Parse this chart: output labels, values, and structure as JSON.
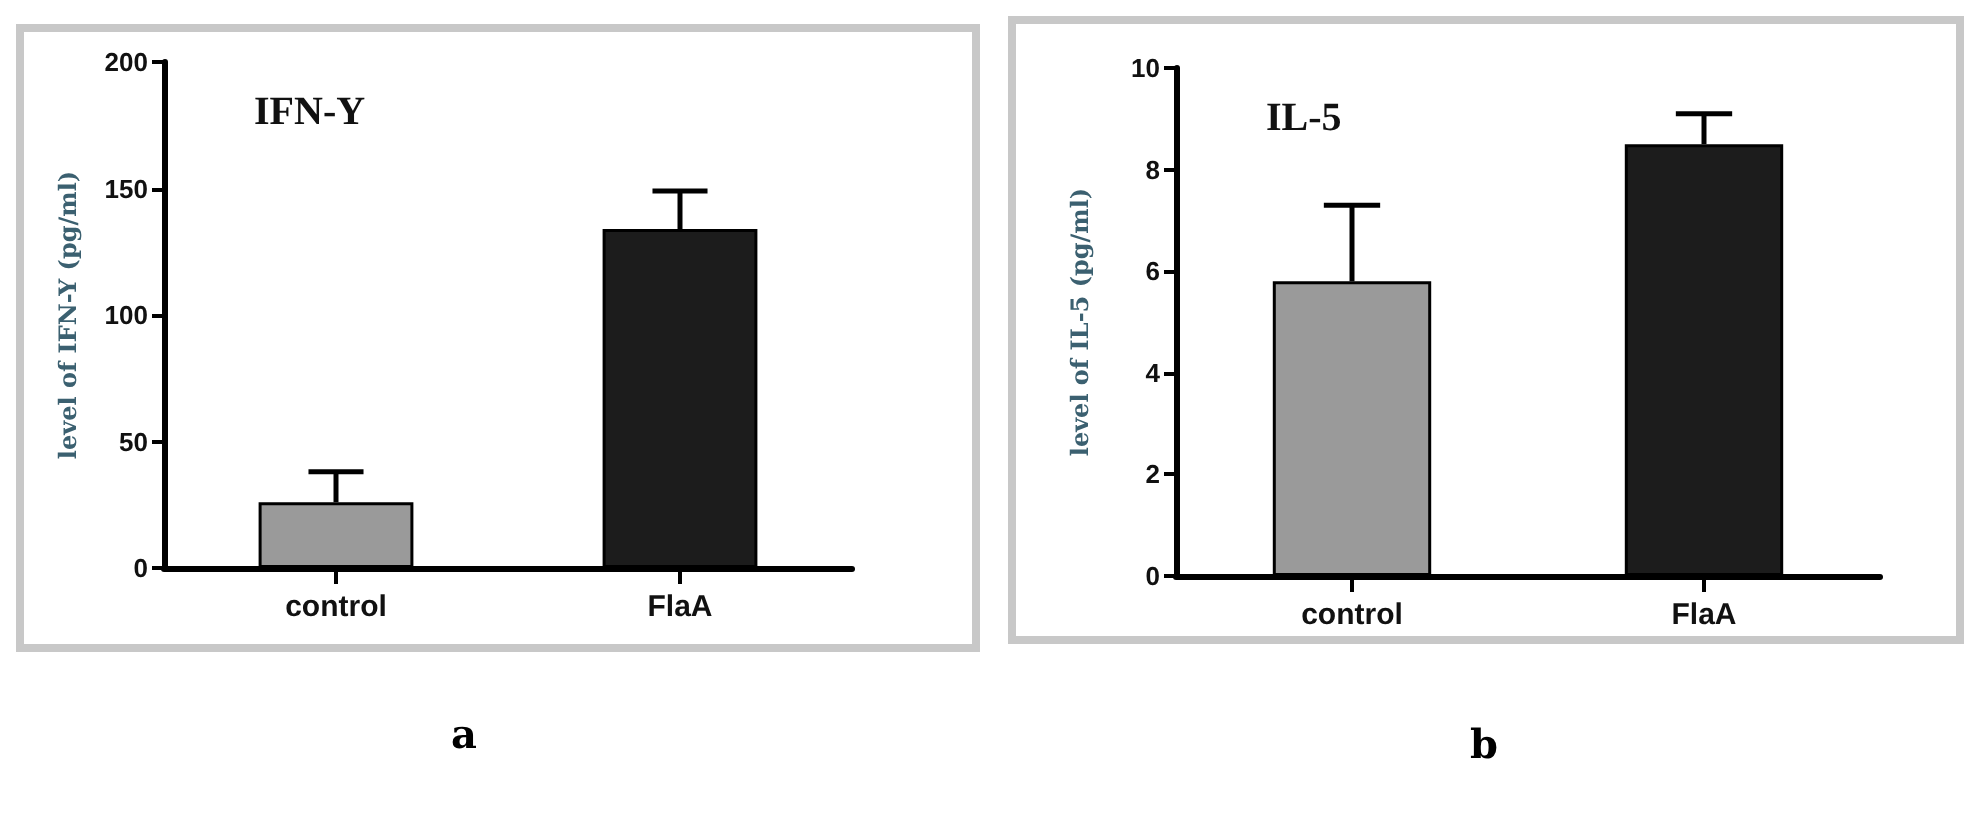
{
  "chart_data": [
    {
      "type": "bar",
      "title": "IFN-Y",
      "ylabel": "level of IFN-Y (pg/ml)",
      "categories": [
        "control",
        "FlaA"
      ],
      "values": [
        26,
        134
      ],
      "errors": [
        [
          26,
          38
        ],
        [
          134,
          149
        ]
      ],
      "colors": [
        "#9a9a9a",
        "#1c1c1c"
      ],
      "ylim": [
        0,
        200
      ],
      "yticks": [
        0,
        50,
        100,
        150,
        200
      ],
      "grid": false,
      "annotations": [
        "a"
      ]
    },
    {
      "type": "bar",
      "title": "IL-5",
      "ylabel": "level of IL-5 (pg/ml)",
      "categories": [
        "control",
        "FlaA"
      ],
      "values": [
        5.8,
        8.5
      ],
      "errors": [
        [
          5.8,
          7.3
        ],
        [
          8.5,
          9.1
        ]
      ],
      "colors": [
        "#9a9a9a",
        "#1c1c1c"
      ],
      "ylim": [
        0,
        10
      ],
      "yticks": [
        0,
        2,
        4,
        6,
        8,
        10
      ],
      "grid": false,
      "annotations": [
        "b"
      ]
    }
  ]
}
